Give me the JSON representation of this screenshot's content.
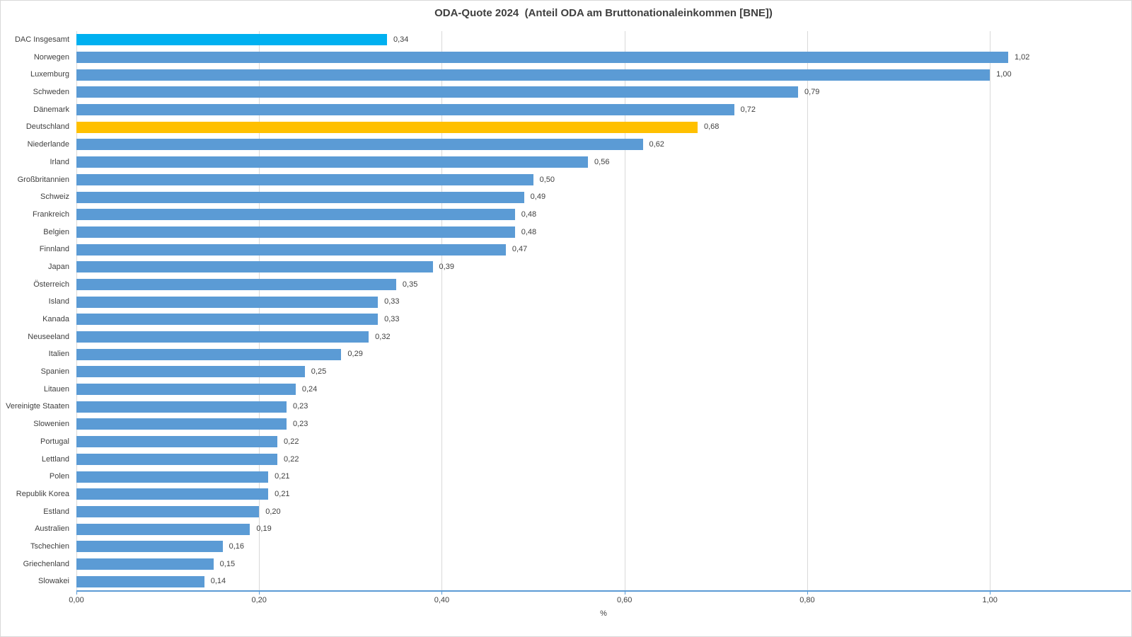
{
  "title": "ODA-Quote 2024  (Anteil ODA am Bruttonationaleinkommen [BNE])",
  "x_axis": {
    "label": "%",
    "ticks": [
      {
        "value": 0.0,
        "label": "0,00"
      },
      {
        "value": 0.2,
        "label": "0,20"
      },
      {
        "value": 0.4,
        "label": "0,40"
      },
      {
        "value": 0.6,
        "label": "0,60"
      },
      {
        "value": 0.8,
        "label": "0,80"
      },
      {
        "value": 1.0,
        "label": "1,00"
      }
    ]
  },
  "colors": {
    "bar_default": "#5B9BD5",
    "bar_dac_total": "#00B0F0",
    "bar_germany": "#FFC000",
    "gridline": "#D9D9D9",
    "axis_line": "#5B9BD5",
    "text": "#404040",
    "title_text": "#3F3F3F"
  },
  "chart_data": {
    "type": "bar",
    "orientation": "horizontal",
    "title": "ODA-Quote 2024  (Anteil ODA am Bruttonationaleinkommen [BNE])",
    "xlabel": "%",
    "ylabel": "",
    "xlim": [
      0,
      1.154
    ],
    "grid": true,
    "legend": false,
    "categories": [
      "DAC Insgesamt",
      "Norwegen",
      "Luxemburg",
      "Schweden",
      "Dänemark",
      "Deutschland",
      "Niederlande",
      "Irland",
      "Großbritannien",
      "Schweiz",
      "Frankreich",
      "Belgien",
      "Finnland",
      "Japan",
      "Österreich",
      "Island",
      "Kanada",
      "Neuseeland",
      "Italien",
      "Spanien",
      "Litauen",
      "Vereinigte Staaten",
      "Slowenien",
      "Portugal",
      "Lettland",
      "Polen",
      "Republik Korea",
      "Estland",
      "Australien",
      "Tschechien",
      "Griechenland",
      "Slowakei"
    ],
    "values": [
      0.34,
      1.02,
      1.0,
      0.79,
      0.72,
      0.68,
      0.62,
      0.56,
      0.5,
      0.49,
      0.48,
      0.48,
      0.47,
      0.39,
      0.35,
      0.33,
      0.33,
      0.32,
      0.29,
      0.25,
      0.24,
      0.23,
      0.23,
      0.22,
      0.22,
      0.21,
      0.21,
      0.2,
      0.19,
      0.16,
      0.15,
      0.14
    ],
    "value_labels": [
      "0,34",
      "1,02",
      "1,00",
      "0,79",
      "0,72",
      "0,68",
      "0,62",
      "0,56",
      "0,50",
      "0,49",
      "0,48",
      "0,48",
      "0,47",
      "0,39",
      "0,35",
      "0,33",
      "0,33",
      "0,32",
      "0,29",
      "0,25",
      "0,24",
      "0,23",
      "0,23",
      "0,22",
      "0,22",
      "0,21",
      "0,21",
      "0,20",
      "0,19",
      "0,16",
      "0,15",
      "0,14"
    ],
    "bar_colors": [
      "#00B0F0",
      "#5B9BD5",
      "#5B9BD5",
      "#5B9BD5",
      "#5B9BD5",
      "#FFC000",
      "#5B9BD5",
      "#5B9BD5",
      "#5B9BD5",
      "#5B9BD5",
      "#5B9BD5",
      "#5B9BD5",
      "#5B9BD5",
      "#5B9BD5",
      "#5B9BD5",
      "#5B9BD5",
      "#5B9BD5",
      "#5B9BD5",
      "#5B9BD5",
      "#5B9BD5",
      "#5B9BD5",
      "#5B9BD5",
      "#5B9BD5",
      "#5B9BD5",
      "#5B9BD5",
      "#5B9BD5",
      "#5B9BD5",
      "#5B9BD5",
      "#5B9BD5",
      "#5B9BD5",
      "#5B9BD5",
      "#5B9BD5"
    ]
  }
}
